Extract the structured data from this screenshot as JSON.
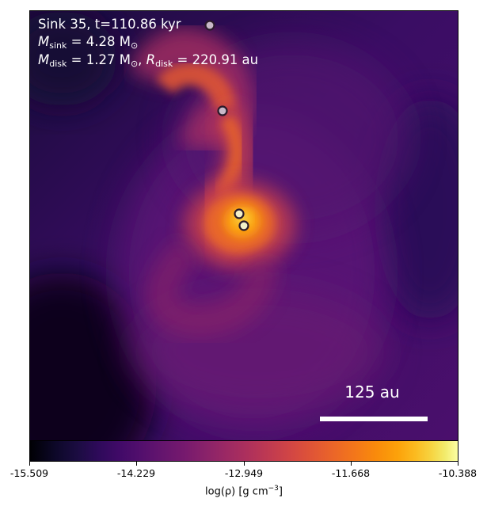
{
  "annotation": {
    "title": "Sink 35, t=110.86 kyr",
    "m_sink_symbol": "M",
    "m_sink_sub": "sink",
    "m_sink_value": " = 4.28 M",
    "m_sink_unit_sub": "⊙",
    "m_disk_symbol": "M",
    "m_disk_sub": "disk",
    "m_disk_value": " = 1.27 M",
    "m_disk_unit_sub": "⊙",
    "m_disk_sep": ", ",
    "r_disk_symbol": "R",
    "r_disk_sub": "disk",
    "r_disk_value": " = 220.91 au"
  },
  "scale_bar": {
    "label": "125 au",
    "color": "#ffffff"
  },
  "colorbar": {
    "colormap": "inferno",
    "ticks": [
      "-15.509",
      "-14.229",
      "-12.949",
      "-11.668",
      "-10.388"
    ],
    "tick_values": [
      -15.509,
      -14.229,
      -12.949,
      -11.668,
      -10.388
    ],
    "range": [
      -15.509,
      -10.388
    ],
    "label_main": "log(ρ) [g cm",
    "label_exp": "−3",
    "label_end": "]"
  },
  "sinks": [
    {
      "name": "sink-top-edge",
      "fill": "#c8b8c8"
    },
    {
      "name": "sink-upper-arm",
      "fill": "#c8b8c8"
    },
    {
      "name": "sink-center-a",
      "fill": "#f2f0c8"
    },
    {
      "name": "sink-center-b",
      "fill": "#f2f0c8"
    }
  ],
  "colors": {
    "background_dark": "#1a0a3a",
    "envelope": "#5a1678",
    "arm": "#e0582e",
    "core": "#fbba1f"
  }
}
